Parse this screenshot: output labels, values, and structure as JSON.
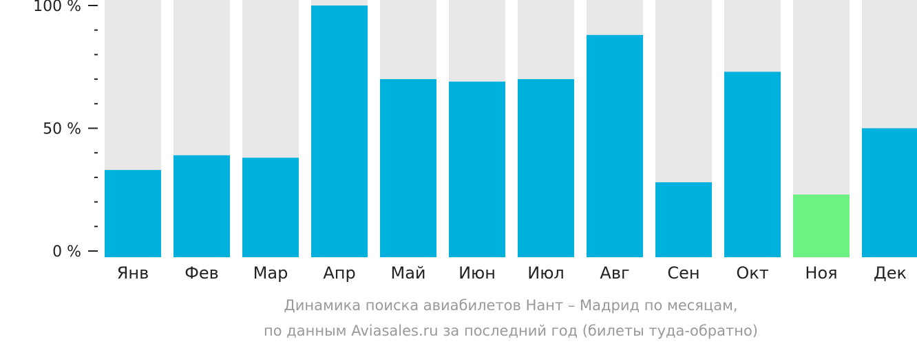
{
  "chart_data": {
    "type": "bar",
    "categories": [
      "Янв",
      "Фев",
      "Мар",
      "Апр",
      "Май",
      "Июн",
      "Июл",
      "Авг",
      "Сен",
      "Окт",
      "Ноя",
      "Дек"
    ],
    "values": [
      33,
      39,
      38,
      100,
      70,
      69,
      70,
      88,
      28,
      73,
      23,
      50
    ],
    "highlight_index": 10,
    "ylim": [
      0,
      100
    ],
    "yticks": [
      {
        "value": 100,
        "label": "100 %"
      },
      {
        "value": 50,
        "label": "50 %"
      },
      {
        "value": 0,
        "label": "0 %"
      }
    ],
    "minor_tick_step": 10,
    "caption_line1": "Динамика поиска авиабилетов Нант – Мадрид по месяцам,",
    "caption_line2": "по данным Aviasales.ru за последний год (билеты туда-обратно)",
    "colors": {
      "bar": "#00b0dd",
      "highlight": "#6cf283",
      "background_bar": "#e8e8e8",
      "axis": "#222222",
      "caption": "#999999"
    }
  }
}
